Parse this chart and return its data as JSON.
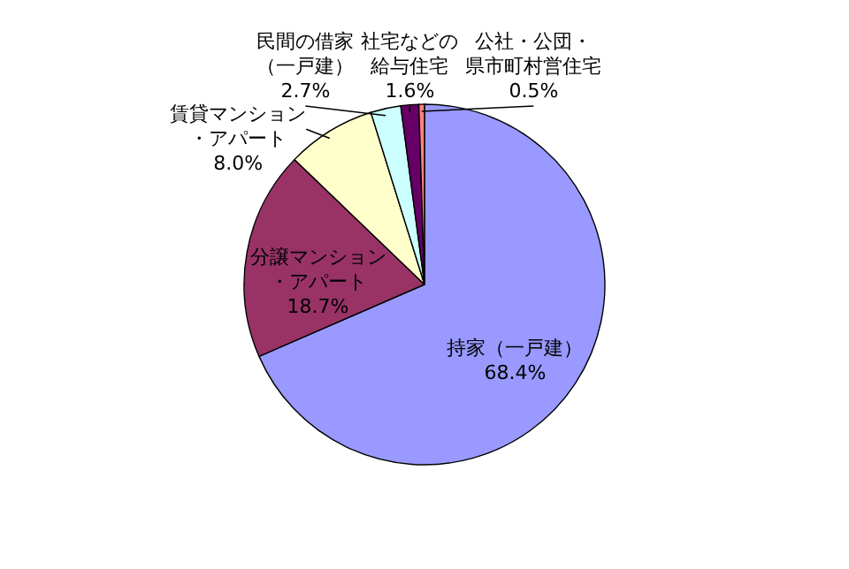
{
  "chart_data": {
    "type": "pie",
    "categories": [
      "持家（一戸建）",
      "分譲マンション・アパート",
      "賃貸マンション・アパート",
      "民間の借家（一戸建）",
      "社宅などの給与住宅",
      "公社・公団・県市町村営住宅"
    ],
    "values": [
      68.4,
      18.7,
      8.0,
      2.7,
      1.6,
      0.5
    ],
    "colors": [
      "#9999ff",
      "#993366",
      "#ffffcc",
      "#ccffff",
      "#660066",
      "#ff8080"
    ],
    "value_labels": [
      "68.4%",
      "18.7%",
      "8.0%",
      "2.7%",
      "1.6%",
      "0.5%"
    ]
  }
}
